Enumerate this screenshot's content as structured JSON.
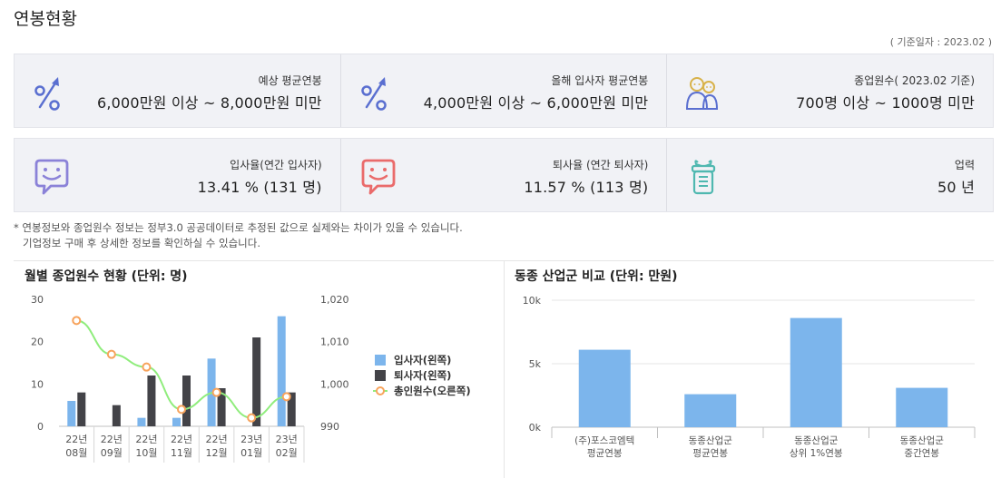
{
  "header": {
    "title": "연봉현황",
    "base_date": "( 기준일자 : 2023.02 )"
  },
  "stats": {
    "avg_salary": {
      "label": "예상 평균연봉",
      "value": "6,000만원 이상 ~ 8,000만원 미만",
      "icon": "percent-up-icon"
    },
    "new_hire_salary": {
      "label": "올해 입사자 평균연봉",
      "value": "4,000만원 이상 ~ 6,000만원 미만",
      "icon": "percent-up-icon"
    },
    "employees": {
      "label": "종업원수( 2023.02 기준)",
      "value": "700명 이상 ~ 1000명 미만",
      "icon": "people-icon"
    },
    "hire_rate": {
      "label": "입사율(연간 입사자)",
      "value": "13.41 % (131 명)",
      "icon": "smile-chat-icon",
      "color": "#8b82d8"
    },
    "leave_rate": {
      "label": "퇴사율 (연간 퇴사자)",
      "value": "11.57 % (113 명)",
      "icon": "smile-chat-icon",
      "color": "#ea6b6b"
    },
    "tenure": {
      "label": "업력",
      "value": "50 년",
      "icon": "gift-icon",
      "color": "#4fb8b0"
    }
  },
  "note": {
    "line1": "* 연봉정보와 종업원수 정보는 정부3.0 공공데이터로 추정된 값으로 실제와는 차이가 있을 수 있습니다.",
    "line2": "기업정보 구매 후 상세한 정보를 확인하실 수 있습니다."
  },
  "chart_data": [
    {
      "type": "bar",
      "title": "월별 종업원수 현황 (단위: 명)",
      "categories": [
        [
          "22년",
          "08월"
        ],
        [
          "22년",
          "09월"
        ],
        [
          "22년",
          "10월"
        ],
        [
          "22년",
          "11월"
        ],
        [
          "22년",
          "12월"
        ],
        [
          "23년",
          "01월"
        ],
        [
          "23년",
          "02월"
        ]
      ],
      "series": [
        {
          "name": "입사자(왼쪽)",
          "type": "bar",
          "axis": "left",
          "color": "#7cb5ec",
          "values": [
            6,
            0,
            2,
            2,
            16,
            0,
            26
          ]
        },
        {
          "name": "퇴사자(왼쪽)",
          "type": "bar",
          "axis": "left",
          "color": "#434348",
          "values": [
            8,
            5,
            12,
            12,
            9,
            21,
            8
          ]
        },
        {
          "name": "총인원수(오른쪽)",
          "type": "line",
          "axis": "right",
          "color": "#90ed7d",
          "marker_color": "#f7a35c",
          "values": [
            1015,
            1007,
            1004,
            994,
            998,
            992,
            997
          ]
        }
      ],
      "y_left": {
        "ticks": [
          "0",
          "10",
          "20",
          "30"
        ],
        "min": 0,
        "max": 30
      },
      "y_right": {
        "ticks": [
          "990",
          "1,000",
          "1,010",
          "1,020"
        ],
        "min": 990,
        "max": 1020
      },
      "legend": "right"
    },
    {
      "type": "bar",
      "title": "동종 산업군 비교 (단위: 만원)",
      "categories": [
        [
          "(주)포스코엠텍",
          "평균연봉"
        ],
        [
          "동종산업군",
          "평균연봉"
        ],
        [
          "동종산업군",
          "상위 1%연봉"
        ],
        [
          "동종산업군",
          "중간연봉"
        ]
      ],
      "series": [
        {
          "name": "",
          "color": "#7cb5ec",
          "values": [
            6100,
            2600,
            8600,
            3100
          ]
        }
      ],
      "y": {
        "ticks": [
          "0k",
          "5k",
          "10k"
        ],
        "min": 0,
        "max": 10000
      },
      "grid": true
    }
  ]
}
